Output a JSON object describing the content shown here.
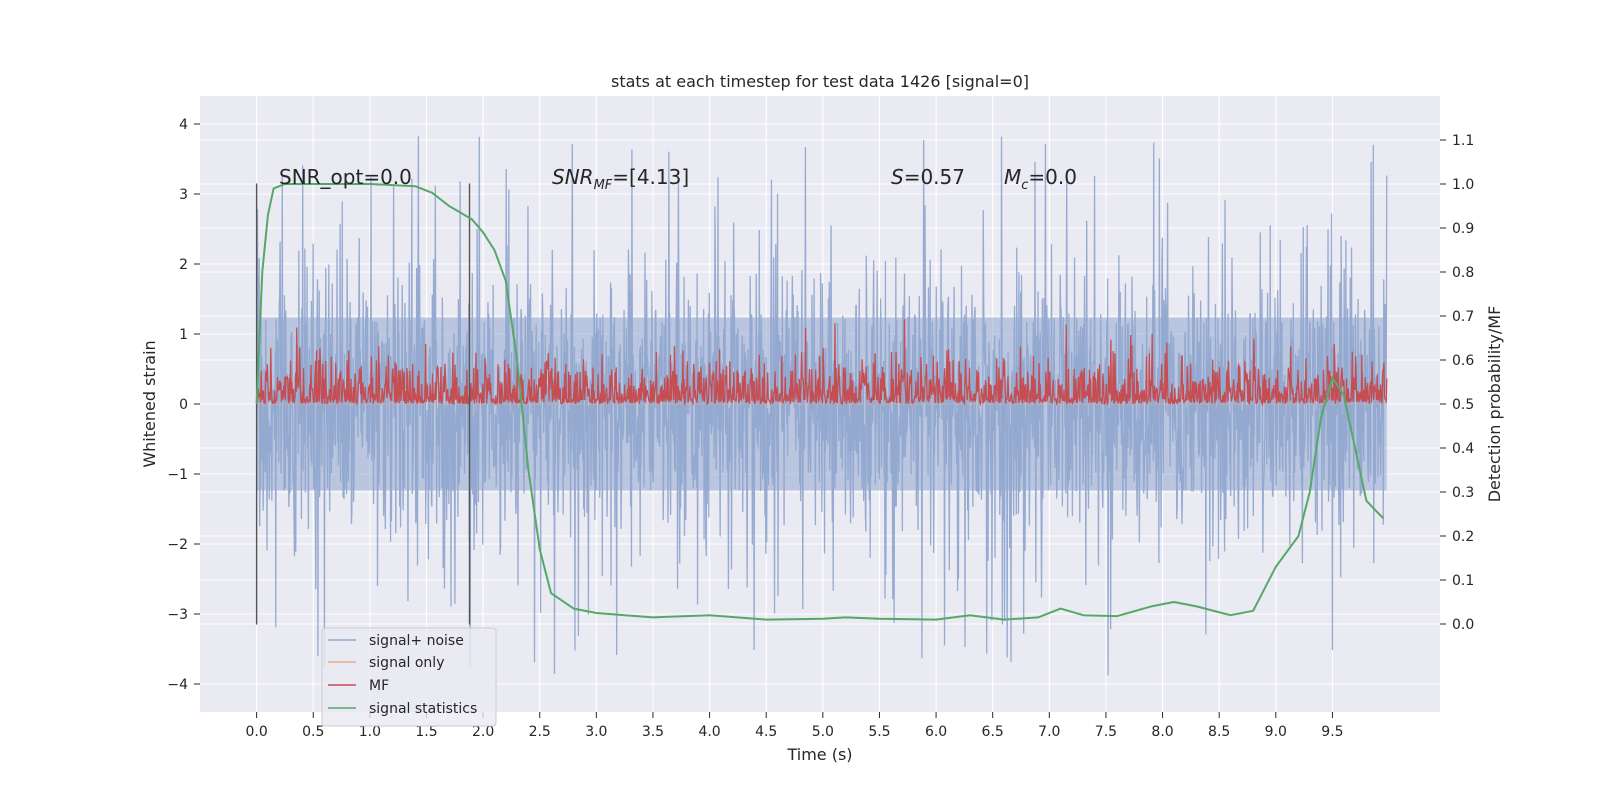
{
  "chart_data": {
    "type": "line",
    "title": "stats at each timestep for test data 1426 [signal=0]",
    "xlabel": "Time (s)",
    "ylabel_left": "Whitened strain",
    "ylabel_right": "Detection probability/MF",
    "xlim": [
      -0.5,
      10.45
    ],
    "ylim_left": [
      -4.4,
      4.4
    ],
    "ylim_right": [
      -0.2,
      1.2
    ],
    "xticks": [
      "0.0",
      "0.5",
      "1.0",
      "1.5",
      "2.0",
      "2.5",
      "3.0",
      "3.5",
      "4.0",
      "4.5",
      "5.0",
      "5.5",
      "6.0",
      "6.5",
      "7.0",
      "7.5",
      "8.0",
      "8.5",
      "9.0",
      "9.5"
    ],
    "yticks_left": [
      "4",
      "3",
      "2",
      "1",
      "0",
      "−1",
      "−2",
      "−3",
      "−4"
    ],
    "yticks_right": [
      "1.1",
      "1.0",
      "0.9",
      "0.8",
      "0.7",
      "0.6",
      "0.5",
      "0.4",
      "0.3",
      "0.2",
      "0.1",
      "0.0"
    ],
    "grid": true,
    "legend_position": "lower-left",
    "annotations": {
      "snr_opt": "SNR_opt=0.0",
      "snr_mf_base": "SNR",
      "snr_mf_sub": "MF",
      "snr_mf_tail": "=[4.13]",
      "s_base": "S",
      "s_tail": "=0.57",
      "mc_base": "M",
      "mc_sub": "c",
      "mc_tail": "=0.0"
    },
    "vertical_lines": [
      0.0,
      1.88
    ],
    "vertical_line_range": [
      -3.15,
      3.15
    ],
    "series": [
      {
        "name": "signal+ noise",
        "axis": "left",
        "color": "#92a7cf",
        "description_range": [
          -4.0,
          4.0
        ],
        "envelope": 1.9
      },
      {
        "name": "signal only",
        "axis": "left",
        "color": "#eeaa8c",
        "values_constant": 0.0
      },
      {
        "name": "MF",
        "axis": "right",
        "color": "#c44e52",
        "range": [
          0.5,
          0.62
        ]
      },
      {
        "name": "signal statistics",
        "axis": "right",
        "color": "#55a868",
        "x": [
          0.0,
          0.05,
          0.1,
          0.15,
          0.25,
          0.5,
          1.0,
          1.4,
          1.55,
          1.7,
          1.9,
          2.0,
          2.1,
          2.2,
          2.3,
          2.4,
          2.5,
          2.6,
          2.8,
          3.0,
          3.5,
          4.0,
          4.5,
          5.0,
          5.2,
          5.5,
          6.0,
          6.3,
          6.6,
          6.9,
          7.1,
          7.3,
          7.6,
          7.9,
          8.1,
          8.3,
          8.6,
          8.8,
          9.0,
          9.2,
          9.3,
          9.4,
          9.5,
          9.6,
          9.7,
          9.8,
          9.95
        ],
        "y": [
          0.5,
          0.8,
          0.93,
          0.99,
          1.0,
          1.0,
          1.0,
          0.995,
          0.98,
          0.95,
          0.92,
          0.89,
          0.85,
          0.78,
          0.6,
          0.35,
          0.17,
          0.07,
          0.035,
          0.025,
          0.015,
          0.02,
          0.01,
          0.012,
          0.015,
          0.012,
          0.01,
          0.02,
          0.01,
          0.015,
          0.035,
          0.02,
          0.018,
          0.04,
          0.05,
          0.04,
          0.02,
          0.03,
          0.13,
          0.2,
          0.3,
          0.47,
          0.56,
          0.52,
          0.4,
          0.28,
          0.24
        ]
      }
    ]
  }
}
